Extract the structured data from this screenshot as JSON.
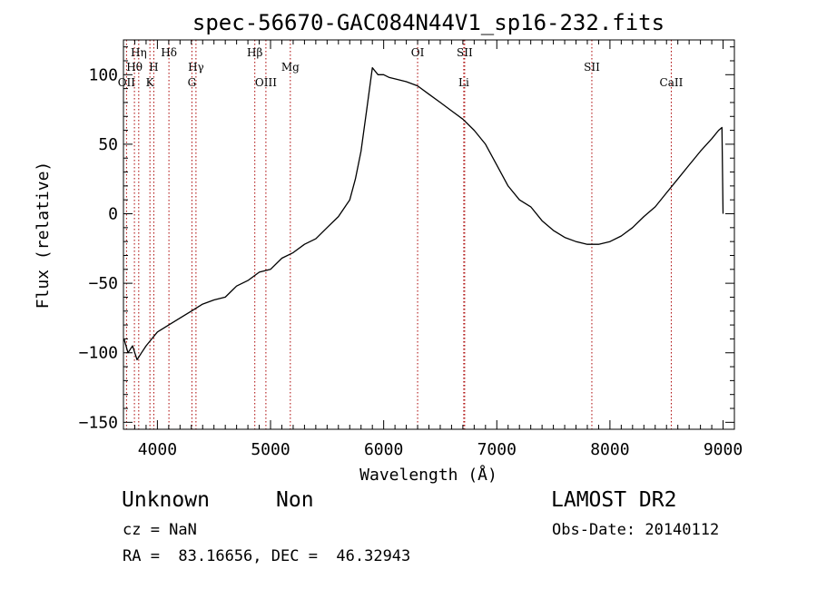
{
  "chart_data": {
    "type": "line",
    "title": "spec-56670-GAC084N44V1_sp16-232.fits",
    "xlabel": "Wavelength (Å)",
    "ylabel": "Flux (relative)",
    "xlim": [
      3700,
      9100
    ],
    "ylim": [
      -155,
      125
    ],
    "xticks": [
      4000,
      5000,
      6000,
      7000,
      8000,
      9000
    ],
    "yticks": [
      -150,
      -100,
      -50,
      0,
      50,
      100
    ],
    "grid": false,
    "line_color": "#000000",
    "marker_color": "#aa0000",
    "series": [
      {
        "x": [
          3705,
          3740,
          3780,
          3820,
          3860,
          3900,
          3950,
          4000,
          4100,
          4200,
          4300,
          4400,
          4500,
          4600,
          4700,
          4800,
          4900,
          5000,
          5100,
          5200,
          5300,
          5400,
          5500,
          5600,
          5700,
          5750,
          5800,
          5850,
          5900,
          5950,
          6000,
          6050,
          6100,
          6200,
          6300,
          6400,
          6500,
          6600,
          6700,
          6800,
          6900,
          7000,
          7100,
          7200,
          7300,
          7400,
          7500,
          7600,
          7700,
          7800,
          7900,
          8000,
          8100,
          8200,
          8300,
          8400,
          8500,
          8600,
          8700,
          8800,
          8900,
          8960,
          8990,
          9000
        ],
        "y": [
          -90,
          -100,
          -95,
          -105,
          -100,
          -95,
          -90,
          -85,
          -80,
          -75,
          -70,
          -65,
          -62,
          -60,
          -52,
          -48,
          -42,
          -40,
          -32,
          -28,
          -22,
          -18,
          -10,
          -2,
          10,
          25,
          45,
          75,
          105,
          100,
          100,
          98,
          97,
          95,
          92,
          86,
          80,
          74,
          68,
          60,
          50,
          35,
          20,
          10,
          5,
          -5,
          -12,
          -17,
          -20,
          -22,
          -22,
          -20,
          -16,
          -10,
          -2,
          5,
          15,
          25,
          35,
          45,
          54,
          60,
          62,
          0
        ]
      }
    ],
    "spectral_lines": [
      {
        "label": "Hη",
        "x": 3835,
        "row": 1
      },
      {
        "label": "Hθ",
        "x": 3797,
        "row": 2
      },
      {
        "label": "OII",
        "x": 3727,
        "row": 3
      },
      {
        "label": "H",
        "x": 3968,
        "row": 2
      },
      {
        "label": "K",
        "x": 3934,
        "row": 3
      },
      {
        "label": "Hδ",
        "x": 4102,
        "row": 1
      },
      {
        "label": "Hγ",
        "x": 4341,
        "row": 2
      },
      {
        "label": "G",
        "x": 4305,
        "row": 3
      },
      {
        "label": "Hβ",
        "x": 4861,
        "row": 1
      },
      {
        "label": "OIII",
        "x": 4959,
        "row": 3
      },
      {
        "label": "Mg",
        "x": 5175,
        "row": 2
      },
      {
        "label": "OI",
        "x": 6300,
        "row": 1
      },
      {
        "label": "SII",
        "x": 6716,
        "row": 1
      },
      {
        "label": "Li",
        "x": 6708,
        "row": 3
      },
      {
        "label": "SII",
        "x": 7840,
        "row": 2
      },
      {
        "label": "CaII",
        "x": 8542,
        "row": 3
      }
    ]
  },
  "info": {
    "object_class": "Unknown",
    "object_subclass": "Non",
    "survey": "LAMOST DR2",
    "redshift": "cz = NaN",
    "obs_date": "Obs-Date: 20140112",
    "coordinates": "RA =  83.16656, DEC =  46.32943"
  }
}
